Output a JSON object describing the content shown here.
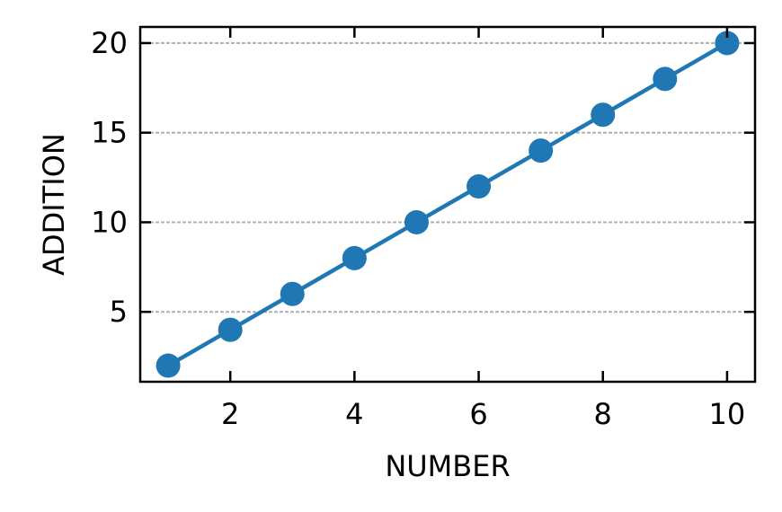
{
  "chart_data": {
    "type": "line",
    "title": "",
    "xlabel": "NUMBER",
    "ylabel": "ADDITION",
    "x": [
      1,
      2,
      3,
      4,
      5,
      6,
      7,
      8,
      9,
      10
    ],
    "series": [
      {
        "values": [
          2,
          4,
          6,
          8,
          10,
          12,
          14,
          16,
          18,
          20
        ],
        "color": "#1f77b4",
        "marker": "circle"
      }
    ],
    "xlim": [
      0.55,
      10.45
    ],
    "ylim": [
      1.1,
      20.9
    ],
    "xticks": [
      2,
      4,
      6,
      8,
      10
    ],
    "yticks": [
      5,
      10,
      15,
      20
    ],
    "grid": {
      "y": true,
      "x": false,
      "style": "dotted",
      "color": "#b0b0b0"
    },
    "tick_direction": "in",
    "mirror_ticks": true,
    "legend": "none"
  }
}
